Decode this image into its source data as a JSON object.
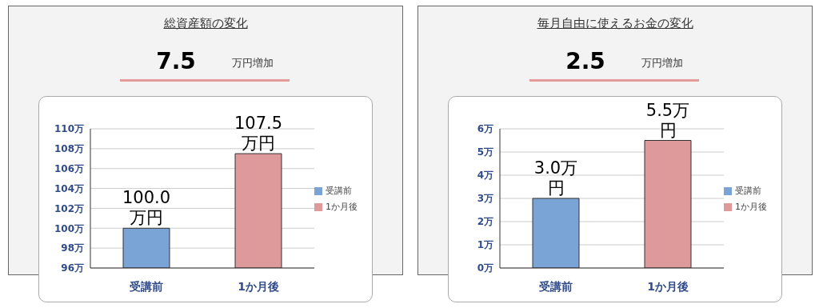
{
  "chart_data": [
    {
      "type": "bar",
      "title": "総資産額の変化",
      "subtitle": "7.5",
      "annotations": [
        "万円増加"
      ],
      "categories": [
        "受講前",
        "1か月後"
      ],
      "series": [
        {
          "name": "受講前",
          "color": "#7ba4d6",
          "values": [
            100,
            null
          ],
          "value_labels": [
            "100.0万円",
            null
          ]
        },
        {
          "name": "1か月後",
          "color": "#de9a9a",
          "values": [
            null,
            107.5
          ],
          "value_labels": [
            null,
            "107.5万円"
          ]
        }
      ],
      "ylim": [
        96,
        110
      ],
      "yticks": [
        {
          "value": 96,
          "label": "96万"
        },
        {
          "value": 98,
          "label": "98万"
        },
        {
          "value": 100,
          "label": "100万"
        },
        {
          "value": 102,
          "label": "102万"
        },
        {
          "value": 104,
          "label": "104万"
        },
        {
          "value": 106,
          "label": "106万"
        },
        {
          "value": 108,
          "label": "108万"
        },
        {
          "value": 110,
          "label": "110万"
        }
      ],
      "grid": "y",
      "legend": "right"
    },
    {
      "type": "bar",
      "title": "毎月自由に使えるお金の変化",
      "subtitle": "2.5",
      "annotations": [
        "万円増加"
      ],
      "categories": [
        "受講前",
        "1か月後"
      ],
      "series": [
        {
          "name": "受講前",
          "color": "#7ba4d6",
          "values": [
            3,
            null
          ],
          "value_labels": [
            "3.0万円",
            null
          ]
        },
        {
          "name": "1か月後",
          "color": "#de9a9a",
          "values": [
            null,
            5.5
          ],
          "value_labels": [
            null,
            "5.5万円"
          ]
        }
      ],
      "ylim": [
        0,
        6
      ],
      "yticks": [
        {
          "value": 0,
          "label": "0万"
        },
        {
          "value": 1,
          "label": "1万"
        },
        {
          "value": 2,
          "label": "2万"
        },
        {
          "value": 3,
          "label": "3万"
        },
        {
          "value": 4,
          "label": "4万"
        },
        {
          "value": 5,
          "label": "5万"
        },
        {
          "value": 6,
          "label": "6万"
        }
      ],
      "grid": "y",
      "legend": "right"
    }
  ]
}
